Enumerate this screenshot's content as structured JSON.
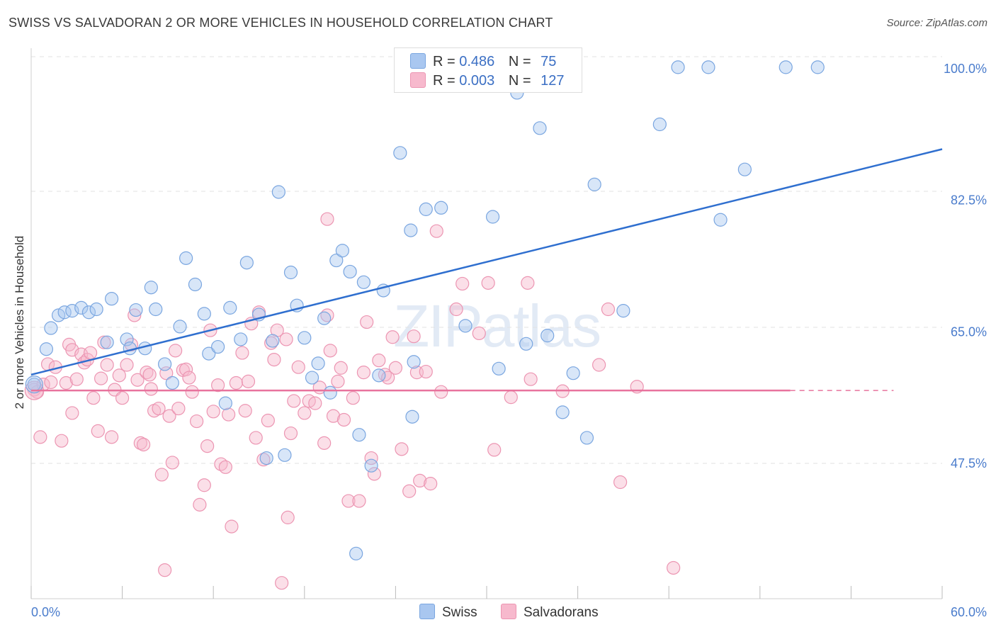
{
  "header": {
    "title": "SWISS VS SALVADORAN 2 OR MORE VEHICLES IN HOUSEHOLD CORRELATION CHART",
    "source": "Source: ZipAtlas.com"
  },
  "watermark": {
    "main": "ZIP",
    "sub": "atlas"
  },
  "legend": {
    "rows": [
      {
        "r_label": "R =",
        "r_value": "0.486",
        "n_label": "N =",
        "n_value": "75",
        "color": "#a9c7f0"
      },
      {
        "r_label": "R =",
        "r_value": "0.003",
        "n_label": "N =",
        "n_value": "127",
        "color": "#f7b9cd"
      }
    ]
  },
  "bottom_legend": {
    "swiss": "Swiss",
    "salvadorans": "Salvadorans"
  },
  "colors": {
    "swiss_fill": "#a9c7f0",
    "swiss_stroke": "#7aa6e0",
    "swiss_line": "#2f6fcf",
    "salv_fill": "#f7b9cd",
    "salv_stroke": "#ec95b2",
    "salv_line": "#e8739d",
    "tick": "#4a7ccc"
  },
  "chart_data": {
    "type": "scatter",
    "title": "SWISS VS SALVADORAN 2 OR MORE VEHICLES IN HOUSEHOLD CORRELATION CHART",
    "xlabel": "",
    "ylabel": "2 or more Vehicles in Household",
    "xlim": [
      0,
      60
    ],
    "ylim": [
      35,
      101.5
    ],
    "x_tick_labels": [
      "0.0%",
      "60.0%"
    ],
    "y_ticks": [
      47.5,
      65.0,
      82.5,
      100.0
    ],
    "y_tick_labels": [
      "47.5%",
      "65.0%",
      "82.5%",
      "100.0%"
    ],
    "grid": true,
    "legend_position": "top-center",
    "series": [
      {
        "name": "Swiss",
        "trend": {
          "x": [
            0,
            60
          ],
          "y": [
            59.3,
            89.3
          ]
        },
        "points": [
          [
            0.2,
            58.0
          ],
          [
            1.0,
            62.7
          ],
          [
            1.3,
            65.5
          ],
          [
            1.8,
            67.2
          ],
          [
            2.2,
            67.6
          ],
          [
            2.7,
            67.8
          ],
          [
            3.3,
            68.2
          ],
          [
            3.8,
            67.6
          ],
          [
            4.3,
            68.0
          ],
          [
            5.3,
            69.4
          ],
          [
            5.0,
            63.6
          ],
          [
            6.3,
            64.0
          ],
          [
            6.5,
            62.8
          ],
          [
            6.9,
            67.9
          ],
          [
            7.5,
            62.8
          ],
          [
            7.9,
            70.9
          ],
          [
            8.2,
            68.0
          ],
          [
            8.8,
            60.7
          ],
          [
            9.3,
            58.2
          ],
          [
            9.8,
            65.7
          ],
          [
            10.2,
            74.8
          ],
          [
            10.8,
            71.3
          ],
          [
            11.4,
            67.4
          ],
          [
            11.7,
            62.1
          ],
          [
            12.3,
            63.0
          ],
          [
            12.8,
            55.5
          ],
          [
            13.1,
            68.2
          ],
          [
            13.8,
            64.0
          ],
          [
            14.2,
            74.2
          ],
          [
            15.0,
            67.3
          ],
          [
            15.5,
            48.2
          ],
          [
            15.9,
            63.8
          ],
          [
            16.3,
            83.6
          ],
          [
            16.7,
            48.6
          ],
          [
            17.1,
            72.9
          ],
          [
            17.5,
            68.5
          ],
          [
            18.0,
            64.2
          ],
          [
            18.5,
            58.9
          ],
          [
            18.9,
            60.8
          ],
          [
            19.3,
            66.8
          ],
          [
            19.7,
            56.9
          ],
          [
            20.1,
            74.5
          ],
          [
            20.5,
            75.8
          ],
          [
            21.0,
            73.0
          ],
          [
            21.4,
            35.5
          ],
          [
            21.6,
            51.3
          ],
          [
            21.9,
            71.6
          ],
          [
            22.4,
            47.2
          ],
          [
            22.9,
            59.2
          ],
          [
            23.2,
            70.5
          ],
          [
            24.3,
            88.8
          ],
          [
            25.0,
            78.5
          ],
          [
            25.1,
            53.7
          ],
          [
            25.2,
            61.0
          ],
          [
            26.0,
            81.3
          ],
          [
            27.0,
            81.5
          ],
          [
            28.6,
            65.8
          ],
          [
            30.4,
            80.3
          ],
          [
            30.8,
            60.1
          ],
          [
            32.0,
            96.8
          ],
          [
            32.1,
            100.0
          ],
          [
            32.6,
            63.4
          ],
          [
            33.5,
            92.1
          ],
          [
            34.0,
            64.5
          ],
          [
            35.0,
            54.3
          ],
          [
            35.7,
            59.5
          ],
          [
            36.6,
            50.9
          ],
          [
            37.1,
            84.6
          ],
          [
            39.0,
            67.8
          ],
          [
            41.4,
            92.6
          ],
          [
            42.6,
            100.2
          ],
          [
            44.6,
            100.2
          ],
          [
            45.4,
            79.9
          ],
          [
            47.0,
            86.6
          ],
          [
            49.7,
            100.2
          ],
          [
            51.8,
            100.2
          ]
        ]
      },
      {
        "name": "Salvadorans",
        "trend": {
          "x": [
            0,
            50
          ],
          "y": [
            57.2,
            57.2
          ],
          "dash_to": 56.8
        },
        "points": [
          [
            0.2,
            57.3
          ],
          [
            0.4,
            57.0
          ],
          [
            0.6,
            51.0
          ],
          [
            0.8,
            58.0
          ],
          [
            1.1,
            60.7
          ],
          [
            1.3,
            58.3
          ],
          [
            1.6,
            60.3
          ],
          [
            2.0,
            50.5
          ],
          [
            2.3,
            58.2
          ],
          [
            2.5,
            63.3
          ],
          [
            2.7,
            62.6
          ],
          [
            2.7,
            54.2
          ],
          [
            3.0,
            58.7
          ],
          [
            3.3,
            62.0
          ],
          [
            3.5,
            60.9
          ],
          [
            3.7,
            61.3
          ],
          [
            3.9,
            62.2
          ],
          [
            4.1,
            56.2
          ],
          [
            4.4,
            51.8
          ],
          [
            4.6,
            58.8
          ],
          [
            4.8,
            63.6
          ],
          [
            5.0,
            60.6
          ],
          [
            5.3,
            51.0
          ],
          [
            5.5,
            57.3
          ],
          [
            5.8,
            59.2
          ],
          [
            6.0,
            56.2
          ],
          [
            6.3,
            60.6
          ],
          [
            6.6,
            63.3
          ],
          [
            6.8,
            67.2
          ],
          [
            7.0,
            58.6
          ],
          [
            7.2,
            50.2
          ],
          [
            7.4,
            50.0
          ],
          [
            7.6,
            59.6
          ],
          [
            7.8,
            59.3
          ],
          [
            7.9,
            57.4
          ],
          [
            8.1,
            54.5
          ],
          [
            8.4,
            54.8
          ],
          [
            8.6,
            46.0
          ],
          [
            8.8,
            33.3
          ],
          [
            8.9,
            59.5
          ],
          [
            9.1,
            53.8
          ],
          [
            9.3,
            47.6
          ],
          [
            9.5,
            62.5
          ],
          [
            9.7,
            54.8
          ],
          [
            10.0,
            59.9
          ],
          [
            10.2,
            60.0
          ],
          [
            10.4,
            58.9
          ],
          [
            10.6,
            57.0
          ],
          [
            10.9,
            53.1
          ],
          [
            11.1,
            42.0
          ],
          [
            11.4,
            44.6
          ],
          [
            11.6,
            49.8
          ],
          [
            11.8,
            65.2
          ],
          [
            12.0,
            54.4
          ],
          [
            12.3,
            57.9
          ],
          [
            12.5,
            47.4
          ],
          [
            12.8,
            47.0
          ],
          [
            13.0,
            54.0
          ],
          [
            13.2,
            39.1
          ],
          [
            13.5,
            58.2
          ],
          [
            13.9,
            62.2
          ],
          [
            14.1,
            54.5
          ],
          [
            14.3,
            58.4
          ],
          [
            14.5,
            66.1
          ],
          [
            14.8,
            50.9
          ],
          [
            15.0,
            67.6
          ],
          [
            15.3,
            48.0
          ],
          [
            15.6,
            53.2
          ],
          [
            15.8,
            63.5
          ],
          [
            16.0,
            61.3
          ],
          [
            16.2,
            65.2
          ],
          [
            16.5,
            31.6
          ],
          [
            16.8,
            64.0
          ],
          [
            16.9,
            40.3
          ],
          [
            17.1,
            51.5
          ],
          [
            17.3,
            55.8
          ],
          [
            17.6,
            60.3
          ],
          [
            18.0,
            54.2
          ],
          [
            18.3,
            55.8
          ],
          [
            18.7,
            55.5
          ],
          [
            19.0,
            57.6
          ],
          [
            19.3,
            50.2
          ],
          [
            19.5,
            67.2
          ],
          [
            19.7,
            62.5
          ],
          [
            19.9,
            53.8
          ],
          [
            20.2,
            58.4
          ],
          [
            20.4,
            60.2
          ],
          [
            20.6,
            53.3
          ],
          [
            20.9,
            42.5
          ],
          [
            21.2,
            56.2
          ],
          [
            21.6,
            42.5
          ],
          [
            21.9,
            59.6
          ],
          [
            22.1,
            66.3
          ],
          [
            22.4,
            48.2
          ],
          [
            22.6,
            46.1
          ],
          [
            22.9,
            61.2
          ],
          [
            23.3,
            59.3
          ],
          [
            23.5,
            58.9
          ],
          [
            23.8,
            64.3
          ],
          [
            24.0,
            60.2
          ],
          [
            24.4,
            49.4
          ],
          [
            24.9,
            43.8
          ],
          [
            25.2,
            64.4
          ],
          [
            25.4,
            59.6
          ],
          [
            25.6,
            45.2
          ],
          [
            26.0,
            59.7
          ],
          [
            26.3,
            44.8
          ],
          [
            26.7,
            78.4
          ],
          [
            27.0,
            57.0
          ],
          [
            28.0,
            68.0
          ],
          [
            28.4,
            71.4
          ],
          [
            29.5,
            64.8
          ],
          [
            30.1,
            71.5
          ],
          [
            30.5,
            49.3
          ],
          [
            31.6,
            56.3
          ],
          [
            32.7,
            71.5
          ],
          [
            32.9,
            58.7
          ],
          [
            35.0,
            57.1
          ],
          [
            37.4,
            60.6
          ],
          [
            38.0,
            68.0
          ],
          [
            38.8,
            45.0
          ],
          [
            39.9,
            57.7
          ],
          [
            42.3,
            33.6
          ],
          [
            19.5,
            80.0
          ]
        ]
      }
    ]
  }
}
